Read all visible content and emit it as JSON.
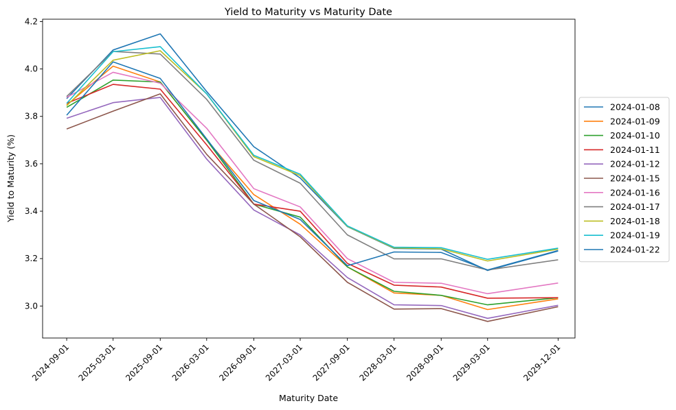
{
  "chart_data": {
    "type": "line",
    "title": "Yield to Maturity vs Maturity Date",
    "xlabel": "Maturity Date",
    "ylabel": "Yield to Maturity (%)",
    "x": [
      "2024-09-01",
      "2025-03-01",
      "2025-09-01",
      "2026-03-01",
      "2026-09-01",
      "2027-03-01",
      "2027-09-01",
      "2028-03-01",
      "2028-09-01",
      "2029-03-01",
      "2029-12-01"
    ],
    "x_numeric_days": [
      0,
      181,
      365,
      546,
      730,
      911,
      1095,
      1277,
      1461,
      1642,
      1917
    ],
    "xlim_days": [
      -94,
      1983
    ],
    "ylim": [
      2.865,
      4.21
    ],
    "yticks": [
      3.0,
      3.2,
      3.4,
      3.6,
      3.8,
      4.0,
      4.2
    ],
    "ytick_labels": [
      "3.0",
      "3.2",
      "3.4",
      "3.6",
      "3.8",
      "4.0",
      "4.2"
    ],
    "grid": false,
    "legend_position": "center-right-outside",
    "series": [
      {
        "name": "2024-01-08",
        "color": "#1f77b4",
        "values": [
          3.875,
          4.08,
          4.148,
          3.905,
          3.672,
          3.54,
          3.335,
          3.243,
          3.24,
          3.15,
          3.232
        ]
      },
      {
        "name": "2024-01-09",
        "color": "#ff7f0e",
        "values": [
          3.848,
          4.012,
          3.945,
          3.7,
          3.47,
          3.345,
          3.165,
          3.055,
          3.045,
          2.985,
          3.03
        ]
      },
      {
        "name": "2024-01-10",
        "color": "#2ca02c",
        "values": [
          3.838,
          3.953,
          3.945,
          3.7,
          3.43,
          3.375,
          3.165,
          3.062,
          3.045,
          3.005,
          3.035
        ]
      },
      {
        "name": "2024-01-11",
        "color": "#d62728",
        "values": [
          3.855,
          3.935,
          3.915,
          3.68,
          3.43,
          3.4,
          3.18,
          3.088,
          3.08,
          3.033,
          3.035
        ]
      },
      {
        "name": "2024-01-12",
        "color": "#9467bd",
        "values": [
          3.792,
          3.858,
          3.88,
          3.62,
          3.405,
          3.3,
          3.12,
          3.005,
          3.002,
          2.948,
          3.003
        ]
      },
      {
        "name": "2024-01-15",
        "color": "#8c564b",
        "values": [
          3.747,
          3.822,
          3.895,
          3.64,
          3.43,
          3.292,
          3.1,
          2.987,
          2.989,
          2.935,
          2.997
        ]
      },
      {
        "name": "2024-01-16",
        "color": "#e377c2",
        "values": [
          3.88,
          3.986,
          3.94,
          3.75,
          3.495,
          3.418,
          3.2,
          3.1,
          3.096,
          3.052,
          3.097
        ]
      },
      {
        "name": "2024-01-17",
        "color": "#7f7f7f",
        "values": [
          3.884,
          4.074,
          4.063,
          3.872,
          3.615,
          3.518,
          3.3,
          3.199,
          3.199,
          3.152,
          3.195
        ]
      },
      {
        "name": "2024-01-18",
        "color": "#bcbd22",
        "values": [
          3.845,
          4.037,
          4.077,
          3.895,
          3.63,
          3.55,
          3.336,
          3.245,
          3.241,
          3.19,
          3.24
        ]
      },
      {
        "name": "2024-01-19",
        "color": "#17becf",
        "values": [
          3.855,
          4.073,
          4.094,
          3.895,
          3.636,
          3.556,
          3.338,
          3.248,
          3.246,
          3.197,
          3.244
        ]
      },
      {
        "name": "2024-01-22",
        "color": "#1f77b4",
        "values": [
          3.805,
          4.03,
          3.96,
          3.705,
          3.445,
          3.365,
          3.17,
          3.228,
          3.226,
          3.152,
          3.234
        ]
      }
    ]
  }
}
